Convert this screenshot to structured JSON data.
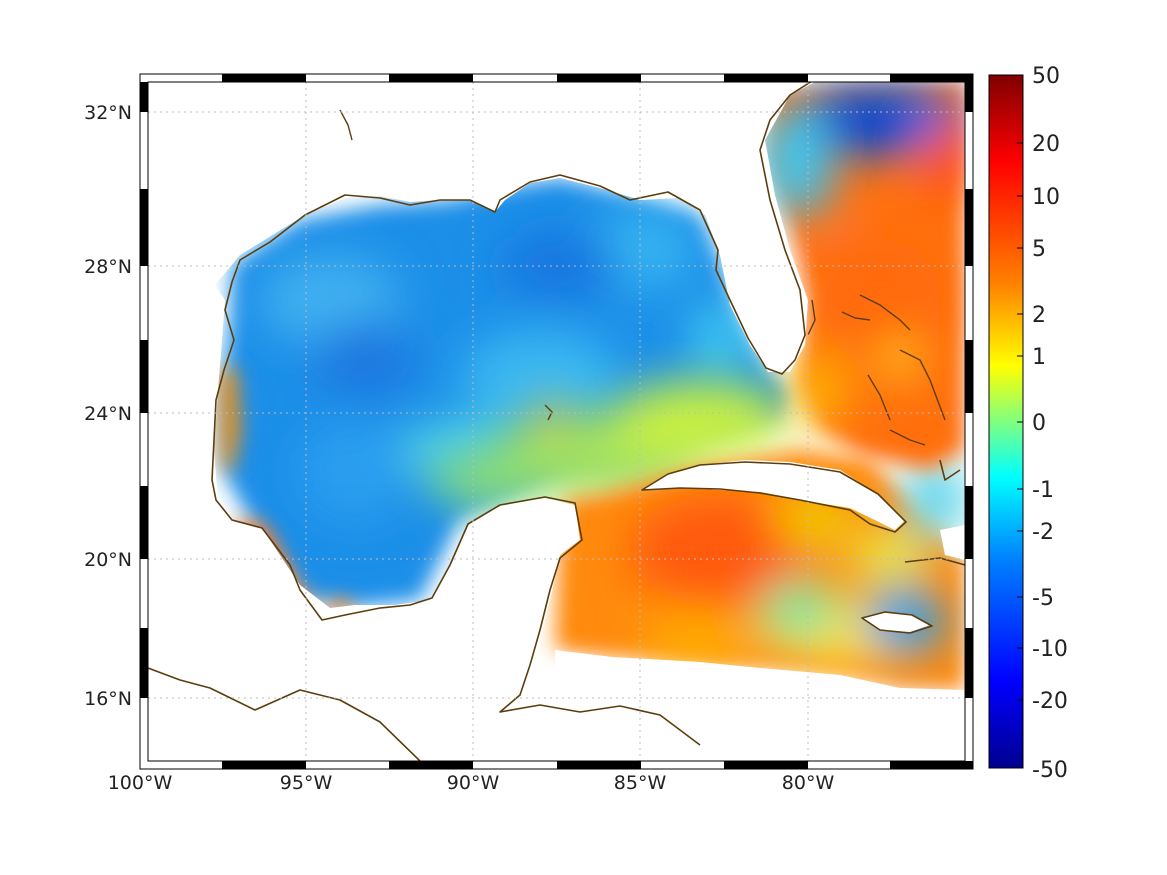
{
  "map": {
    "region": "Gulf of Mexico and western Caribbean",
    "lon_range": [
      -100,
      -75
    ],
    "lat_range": [
      14,
      33
    ],
    "lon_ticks": [
      {
        "value": -100,
        "label": "100°W"
      },
      {
        "value": -95,
        "label": "95°W"
      },
      {
        "value": -90,
        "label": "90°W"
      },
      {
        "value": -85,
        "label": "85°W"
      },
      {
        "value": -80,
        "label": "80°W"
      }
    ],
    "lat_ticks": [
      {
        "value": 32,
        "label": "32°N"
      },
      {
        "value": 28,
        "label": "28°N"
      },
      {
        "value": 24,
        "label": "24°N"
      },
      {
        "value": 20,
        "label": "20°N"
      },
      {
        "value": 16,
        "label": "16°N"
      }
    ],
    "grid": true,
    "coastline_color": "#5c3d0e",
    "colormap": "jet"
  },
  "colorbar": {
    "placement": "right",
    "ticks": [
      "50",
      "20",
      "10",
      "5",
      "2",
      "1",
      "0",
      "-1",
      "-2",
      "-5",
      "-10",
      "-20",
      "-50"
    ],
    "colors": [
      "#7f0000",
      "#ff0000",
      "#ff8000",
      "#ffff00",
      "#80ff80",
      "#00ffff",
      "#0080ff",
      "#0000ff",
      "#00008f"
    ]
  }
}
